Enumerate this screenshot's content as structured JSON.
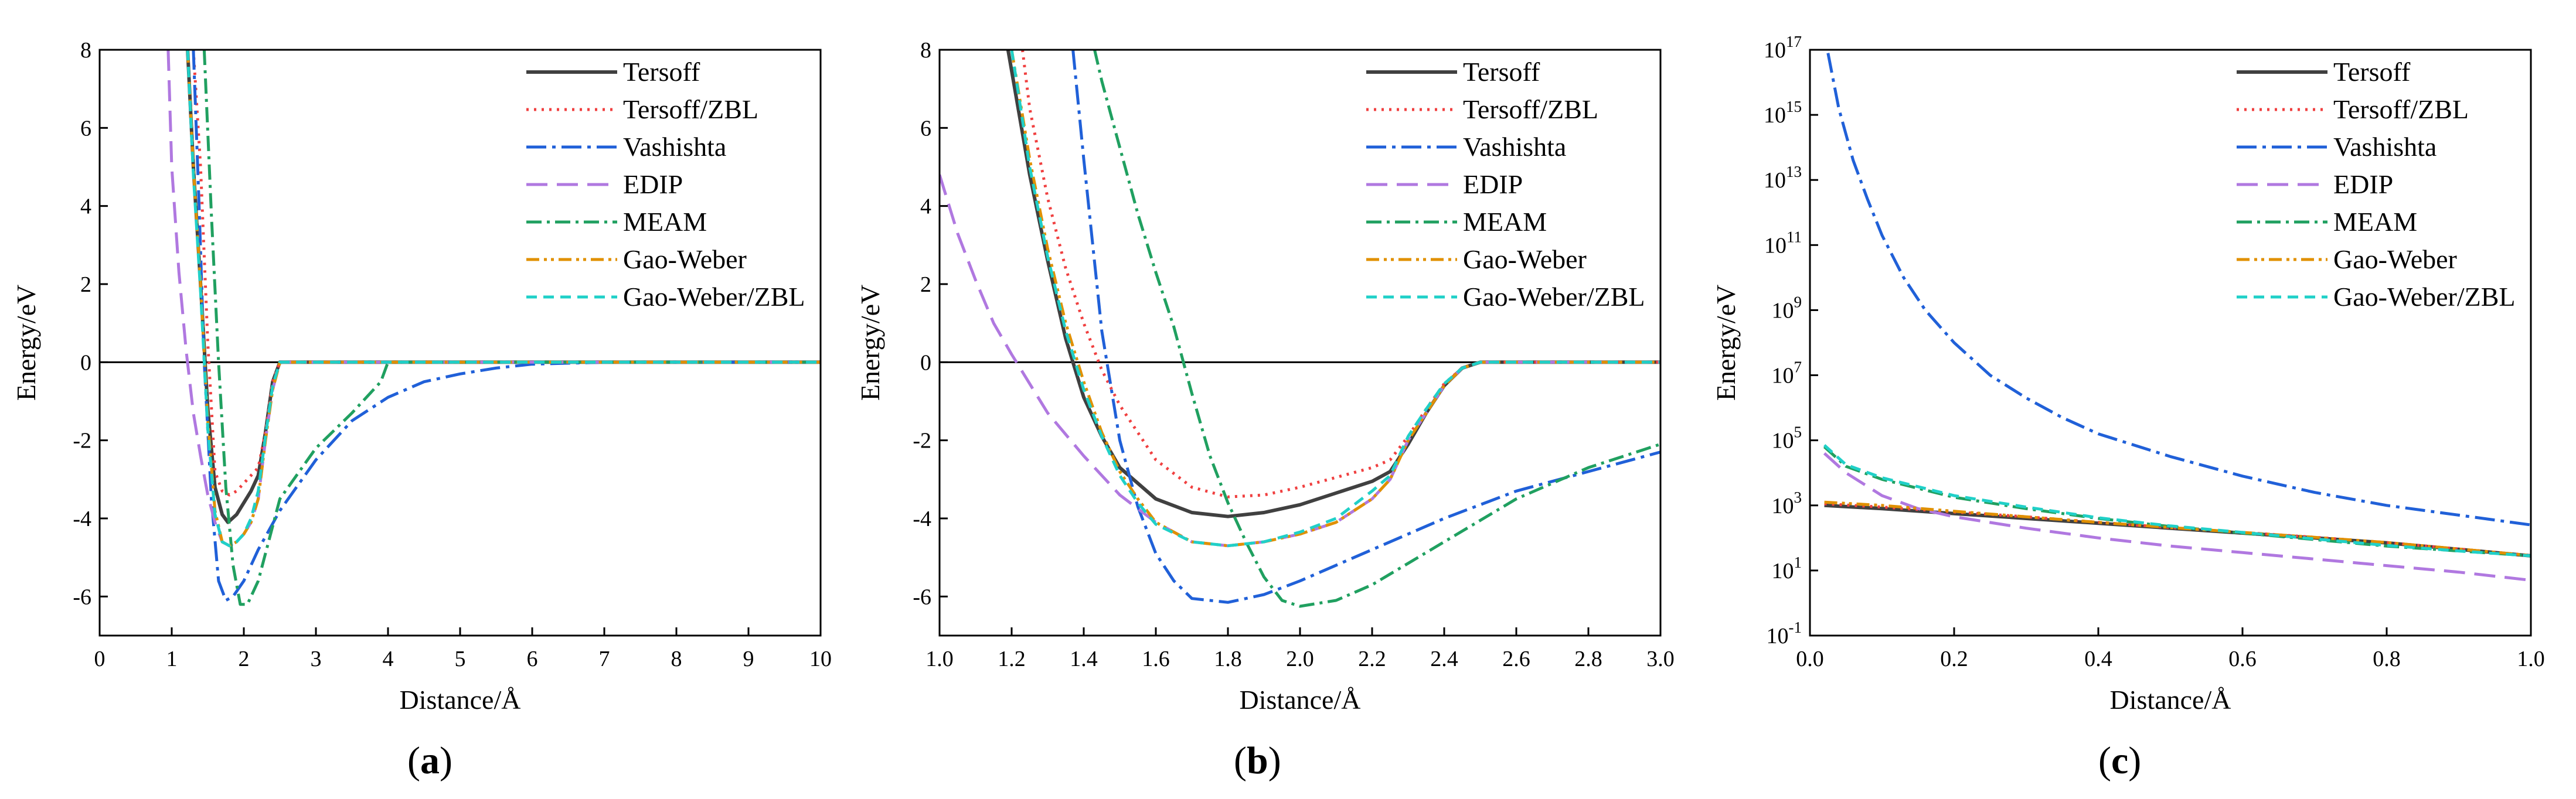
{
  "colors": {
    "Tersoff": "#404040",
    "Tersoff/ZBL": "#f04040",
    "Vashishta": "#2060d8",
    "EDIP": "#b078e0",
    "MEAM": "#20a060",
    "Gao-Weber": "#e09000",
    "Gao-Weber/ZBL": "#20d0c8"
  },
  "chart_data": [
    {
      "id": "a",
      "type": "line",
      "panel_label": "a",
      "xlabel": "Distance/Å",
      "ylabel": "Energy/eV",
      "xlim": [
        0,
        10
      ],
      "ylim": [
        -7,
        8
      ],
      "yscale": "linear",
      "xticks": [
        0,
        1,
        2,
        3,
        4,
        5,
        6,
        7,
        8,
        9,
        10
      ],
      "xtick_labels": [
        "0",
        "1",
        "2",
        "3",
        "4",
        "5",
        "6",
        "7",
        "8",
        "9",
        "10"
      ],
      "yticks": [
        -6,
        -4,
        -2,
        0,
        2,
        4,
        6,
        8
      ],
      "ytick_labels": [
        "-6",
        "-4",
        "-2",
        "0",
        "2",
        "4",
        "6",
        "8"
      ],
      "zero_line": true,
      "legend_position": "top-right",
      "series": [
        {
          "name": "Tersoff",
          "x": [
            1.22,
            1.3,
            1.4,
            1.5,
            1.6,
            1.7,
            1.78,
            1.9,
            2.0,
            2.1,
            2.2,
            2.3,
            2.4,
            2.5,
            2.6,
            10
          ],
          "y": [
            8,
            5,
            2,
            -1.2,
            -3.2,
            -3.9,
            -4.1,
            -3.9,
            -3.6,
            -3.3,
            -2.9,
            -1.8,
            -0.5,
            0,
            0,
            0
          ]
        },
        {
          "name": "Tersoff/ZBL",
          "x": [
            1.3,
            1.4,
            1.5,
            1.6,
            1.7,
            1.8,
            1.9,
            2.0,
            2.2,
            2.3,
            2.4,
            2.5,
            10
          ],
          "y": [
            8,
            5,
            0.5,
            -2.8,
            -3.3,
            -3.4,
            -3.3,
            -3.1,
            -2.7,
            -1.8,
            -0.5,
            0,
            0
          ]
        },
        {
          "name": "Vashishta",
          "x": [
            1.3,
            1.38,
            1.45,
            1.55,
            1.65,
            1.75,
            1.85,
            2.0,
            2.2,
            2.5,
            3.0,
            3.5,
            4.0,
            4.5,
            5.0,
            5.5,
            6.0,
            7.0,
            10
          ],
          "y": [
            8,
            4,
            0,
            -3.5,
            -5.6,
            -6.1,
            -6.0,
            -5.6,
            -4.8,
            -3.8,
            -2.5,
            -1.5,
            -0.9,
            -0.5,
            -0.3,
            -0.15,
            -0.05,
            0,
            0
          ]
        },
        {
          "name": "EDIP",
          "x": [
            0.95,
            1.0,
            1.1,
            1.2,
            1.3,
            1.4,
            1.5,
            1.6,
            1.7,
            1.8,
            1.9,
            2.0,
            2.1,
            2.2,
            2.3,
            2.4,
            2.5,
            10
          ],
          "y": [
            8,
            5,
            2.3,
            0.3,
            -1.3,
            -2.4,
            -3.4,
            -4.1,
            -4.6,
            -4.7,
            -4.6,
            -4.4,
            -4.1,
            -3.5,
            -2.0,
            -0.7,
            0,
            0
          ]
        },
        {
          "name": "MEAM",
          "x": [
            1.45,
            1.55,
            1.65,
            1.75,
            1.85,
            1.95,
            2.05,
            2.2,
            2.5,
            3.0,
            3.5,
            3.9,
            4.0,
            10
          ],
          "y": [
            8,
            3.8,
            0,
            -3.2,
            -5.2,
            -6.2,
            -6.2,
            -5.6,
            -3.5,
            -2.2,
            -1.3,
            -0.5,
            0,
            0
          ]
        },
        {
          "name": "Gao-Weber",
          "x": [
            1.22,
            1.3,
            1.4,
            1.5,
            1.6,
            1.7,
            1.8,
            1.9,
            2.0,
            2.1,
            2.2,
            2.3,
            2.4,
            2.5,
            10
          ],
          "y": [
            8,
            5,
            2,
            -1.5,
            -3.8,
            -4.6,
            -4.7,
            -4.6,
            -4.4,
            -4.1,
            -3.5,
            -2.0,
            -0.7,
            0,
            0
          ]
        },
        {
          "name": "Gao-Weber/ZBL",
          "x": [
            1.22,
            1.3,
            1.4,
            1.5,
            1.6,
            1.7,
            1.8,
            1.9,
            2.0,
            2.1,
            2.2,
            2.3,
            2.4,
            2.5,
            10
          ],
          "y": [
            8,
            4.8,
            1.8,
            -1.7,
            -3.9,
            -4.6,
            -4.7,
            -4.6,
            -4.4,
            -4.0,
            -3.3,
            -1.9,
            -0.6,
            0,
            0
          ]
        }
      ]
    },
    {
      "id": "b",
      "type": "line",
      "panel_label": "b",
      "xlabel": "Distance/Å",
      "ylabel": "Energy/eV",
      "xlim": [
        1.0,
        3.0
      ],
      "ylim": [
        -7,
        8
      ],
      "yscale": "linear",
      "xticks": [
        1.0,
        1.2,
        1.4,
        1.6,
        1.8,
        2.0,
        2.2,
        2.4,
        2.6,
        2.8,
        3.0
      ],
      "xtick_labels": [
        "1.0",
        "1.2",
        "1.4",
        "1.6",
        "1.8",
        "2.0",
        "2.2",
        "2.4",
        "2.6",
        "2.8",
        "3.0"
      ],
      "yticks": [
        -6,
        -4,
        -2,
        0,
        2,
        4,
        6,
        8
      ],
      "ytick_labels": [
        "-6",
        "-4",
        "-2",
        "0",
        "2",
        "4",
        "6",
        "8"
      ],
      "zero_line": true,
      "legend_position": "top-right",
      "series": [
        {
          "name": "Tersoff",
          "x": [
            1.19,
            1.25,
            1.3,
            1.35,
            1.4,
            1.45,
            1.5,
            1.6,
            1.7,
            1.8,
            1.9,
            2.0,
            2.1,
            2.2,
            2.25,
            2.3,
            2.35,
            2.4,
            2.45,
            2.5,
            3.0
          ],
          "y": [
            8,
            4.8,
            2.6,
            0.6,
            -0.9,
            -1.9,
            -2.7,
            -3.5,
            -3.85,
            -3.95,
            -3.85,
            -3.65,
            -3.35,
            -3.05,
            -2.8,
            -2.1,
            -1.3,
            -0.6,
            -0.15,
            0,
            0
          ]
        },
        {
          "name": "Tersoff/ZBL",
          "x": [
            1.23,
            1.25,
            1.3,
            1.35,
            1.4,
            1.45,
            1.5,
            1.6,
            1.7,
            1.8,
            1.9,
            2.0,
            2.1,
            2.2,
            2.25,
            2.3,
            2.35,
            2.4,
            2.45,
            2.5,
            3.0
          ],
          "y": [
            8,
            6.5,
            4.2,
            2.4,
            1.0,
            -0.2,
            -1.1,
            -2.5,
            -3.2,
            -3.45,
            -3.4,
            -3.2,
            -2.95,
            -2.7,
            -2.5,
            -1.9,
            -1.2,
            -0.55,
            -0.15,
            0,
            0
          ]
        },
        {
          "name": "Vashishta",
          "x": [
            1.37,
            1.4,
            1.45,
            1.5,
            1.55,
            1.6,
            1.65,
            1.7,
            1.8,
            1.9,
            2.0,
            2.2,
            2.4,
            2.6,
            2.8,
            3.0
          ],
          "y": [
            8,
            5.2,
            0.8,
            -2.0,
            -3.7,
            -4.9,
            -5.6,
            -6.05,
            -6.15,
            -5.95,
            -5.6,
            -4.8,
            -4.0,
            -3.3,
            -2.8,
            -2.3
          ]
        },
        {
          "name": "EDIP",
          "x": [
            1.0,
            1.05,
            1.1,
            1.15,
            1.2,
            1.3,
            1.4,
            1.5,
            1.6,
            1.7,
            1.8,
            1.9,
            2.0,
            2.1,
            2.2,
            2.25,
            2.3,
            2.35,
            2.4,
            2.45,
            2.5,
            3.0
          ],
          "y": [
            4.8,
            3.3,
            2.1,
            1.0,
            0.2,
            -1.3,
            -2.4,
            -3.4,
            -4.1,
            -4.6,
            -4.7,
            -4.6,
            -4.4,
            -4.1,
            -3.5,
            -3.0,
            -2.0,
            -1.3,
            -0.6,
            -0.15,
            0,
            0
          ]
        },
        {
          "name": "MEAM",
          "x": [
            1.43,
            1.45,
            1.5,
            1.55,
            1.6,
            1.65,
            1.7,
            1.75,
            1.8,
            1.85,
            1.9,
            1.95,
            2.0,
            2.1,
            2.2,
            2.4,
            2.6,
            2.8,
            3.0
          ],
          "y": [
            8,
            7.2,
            5.5,
            3.8,
            2.3,
            0.9,
            -0.8,
            -2.4,
            -3.6,
            -4.6,
            -5.5,
            -6.1,
            -6.25,
            -6.1,
            -5.7,
            -4.6,
            -3.5,
            -2.7,
            -2.1
          ]
        },
        {
          "name": "Gao-Weber",
          "x": [
            1.2,
            1.25,
            1.3,
            1.35,
            1.4,
            1.45,
            1.5,
            1.55,
            1.6,
            1.7,
            1.8,
            1.9,
            2.0,
            2.1,
            2.2,
            2.25,
            2.3,
            2.35,
            2.4,
            2.45,
            2.5,
            3.0
          ],
          "y": [
            8,
            5.2,
            2.9,
            1.0,
            -0.5,
            -1.8,
            -2.8,
            -3.5,
            -4.1,
            -4.6,
            -4.7,
            -4.6,
            -4.4,
            -4.1,
            -3.5,
            -3.0,
            -2.0,
            -1.3,
            -0.6,
            -0.15,
            0,
            0
          ]
        },
        {
          "name": "Gao-Weber/ZBL",
          "x": [
            1.2,
            1.25,
            1.3,
            1.35,
            1.4,
            1.45,
            1.5,
            1.55,
            1.6,
            1.7,
            1.8,
            1.9,
            2.0,
            2.1,
            2.2,
            2.25,
            2.3,
            2.35,
            2.4,
            2.45,
            2.5,
            3.0
          ],
          "y": [
            8,
            5.0,
            2.7,
            0.8,
            -0.7,
            -1.9,
            -2.9,
            -3.6,
            -4.15,
            -4.6,
            -4.7,
            -4.6,
            -4.35,
            -4.0,
            -3.3,
            -2.9,
            -1.9,
            -1.2,
            -0.55,
            -0.15,
            0,
            0
          ]
        }
      ]
    },
    {
      "id": "c",
      "type": "line",
      "panel_label": "c",
      "xlabel": "Distance/Å",
      "ylabel": "Energy/eV",
      "xlim": [
        0.0,
        1.0
      ],
      "ylim_log10": [
        -1,
        17
      ],
      "yscale": "log",
      "xticks": [
        0.0,
        0.2,
        0.4,
        0.6,
        0.8,
        1.0
      ],
      "xtick_labels": [
        "0.0",
        "0.2",
        "0.4",
        "0.6",
        "0.8",
        "1.0"
      ],
      "yticks_log10": [
        -1,
        1,
        3,
        5,
        7,
        9,
        11,
        13,
        15,
        17
      ],
      "ytick_base": "10",
      "ytick_exponents": [
        "-1",
        "1",
        "3",
        "5",
        "7",
        "9",
        "11",
        "13",
        "15",
        "17"
      ],
      "zero_line": false,
      "legend_position": "top-right",
      "series": [
        {
          "name": "Tersoff",
          "x": [
            0.02,
            0.1,
            0.2,
            0.3,
            0.4,
            0.5,
            0.6,
            0.7,
            0.8,
            0.9,
            1.0
          ],
          "log10_y": [
            3.0,
            2.9,
            2.75,
            2.6,
            2.45,
            2.3,
            2.15,
            2.0,
            1.85,
            1.65,
            1.45
          ]
        },
        {
          "name": "Tersoff/ZBL",
          "x": [
            0.02,
            0.1,
            0.2,
            0.3,
            0.4,
            0.5,
            0.6,
            0.7,
            0.8,
            0.9,
            1.0
          ],
          "log10_y": [
            3.05,
            2.95,
            2.8,
            2.65,
            2.48,
            2.32,
            2.17,
            2.02,
            1.86,
            1.66,
            1.46
          ]
        },
        {
          "name": "Vashishta",
          "x": [
            0.025,
            0.04,
            0.06,
            0.08,
            0.1,
            0.13,
            0.16,
            0.2,
            0.25,
            0.3,
            0.35,
            0.4,
            0.5,
            0.6,
            0.7,
            0.8,
            0.9,
            1.0
          ],
          "log10_y": [
            16.9,
            15.2,
            13.6,
            12.4,
            11.3,
            10.0,
            9.0,
            8.0,
            7.0,
            6.3,
            5.7,
            5.2,
            4.5,
            3.9,
            3.4,
            3.0,
            2.7,
            2.4
          ]
        },
        {
          "name": "EDIP",
          "x": [
            0.02,
            0.05,
            0.1,
            0.15,
            0.2,
            0.3,
            0.4,
            0.5,
            0.6,
            0.7,
            0.8,
            0.9,
            1.0
          ],
          "log10_y": [
            4.6,
            4.0,
            3.3,
            2.9,
            2.65,
            2.3,
            2.0,
            1.75,
            1.55,
            1.35,
            1.15,
            0.95,
            0.7
          ]
        },
        {
          "name": "MEAM",
          "x": [
            0.02,
            0.05,
            0.1,
            0.2,
            0.3,
            0.4,
            0.5,
            0.6,
            0.7,
            0.8,
            0.9,
            1.0
          ],
          "log10_y": [
            4.8,
            4.2,
            3.8,
            3.25,
            2.9,
            2.6,
            2.35,
            2.15,
            1.95,
            1.75,
            1.6,
            1.45
          ]
        },
        {
          "name": "Gao-Weber",
          "x": [
            0.02,
            0.1,
            0.2,
            0.3,
            0.4,
            0.5,
            0.6,
            0.7,
            0.8,
            0.9,
            1.0
          ],
          "log10_y": [
            3.1,
            3.0,
            2.82,
            2.65,
            2.48,
            2.32,
            2.17,
            2.02,
            1.86,
            1.66,
            1.46
          ]
        },
        {
          "name": "Gao-Weber/ZBL",
          "x": [
            0.02,
            0.05,
            0.1,
            0.2,
            0.3,
            0.4,
            0.5,
            0.6,
            0.7,
            0.8,
            0.9,
            1.0
          ],
          "log10_y": [
            4.85,
            4.25,
            3.85,
            3.3,
            2.95,
            2.62,
            2.37,
            2.17,
            1.97,
            1.77,
            1.6,
            1.45
          ]
        }
      ]
    }
  ]
}
